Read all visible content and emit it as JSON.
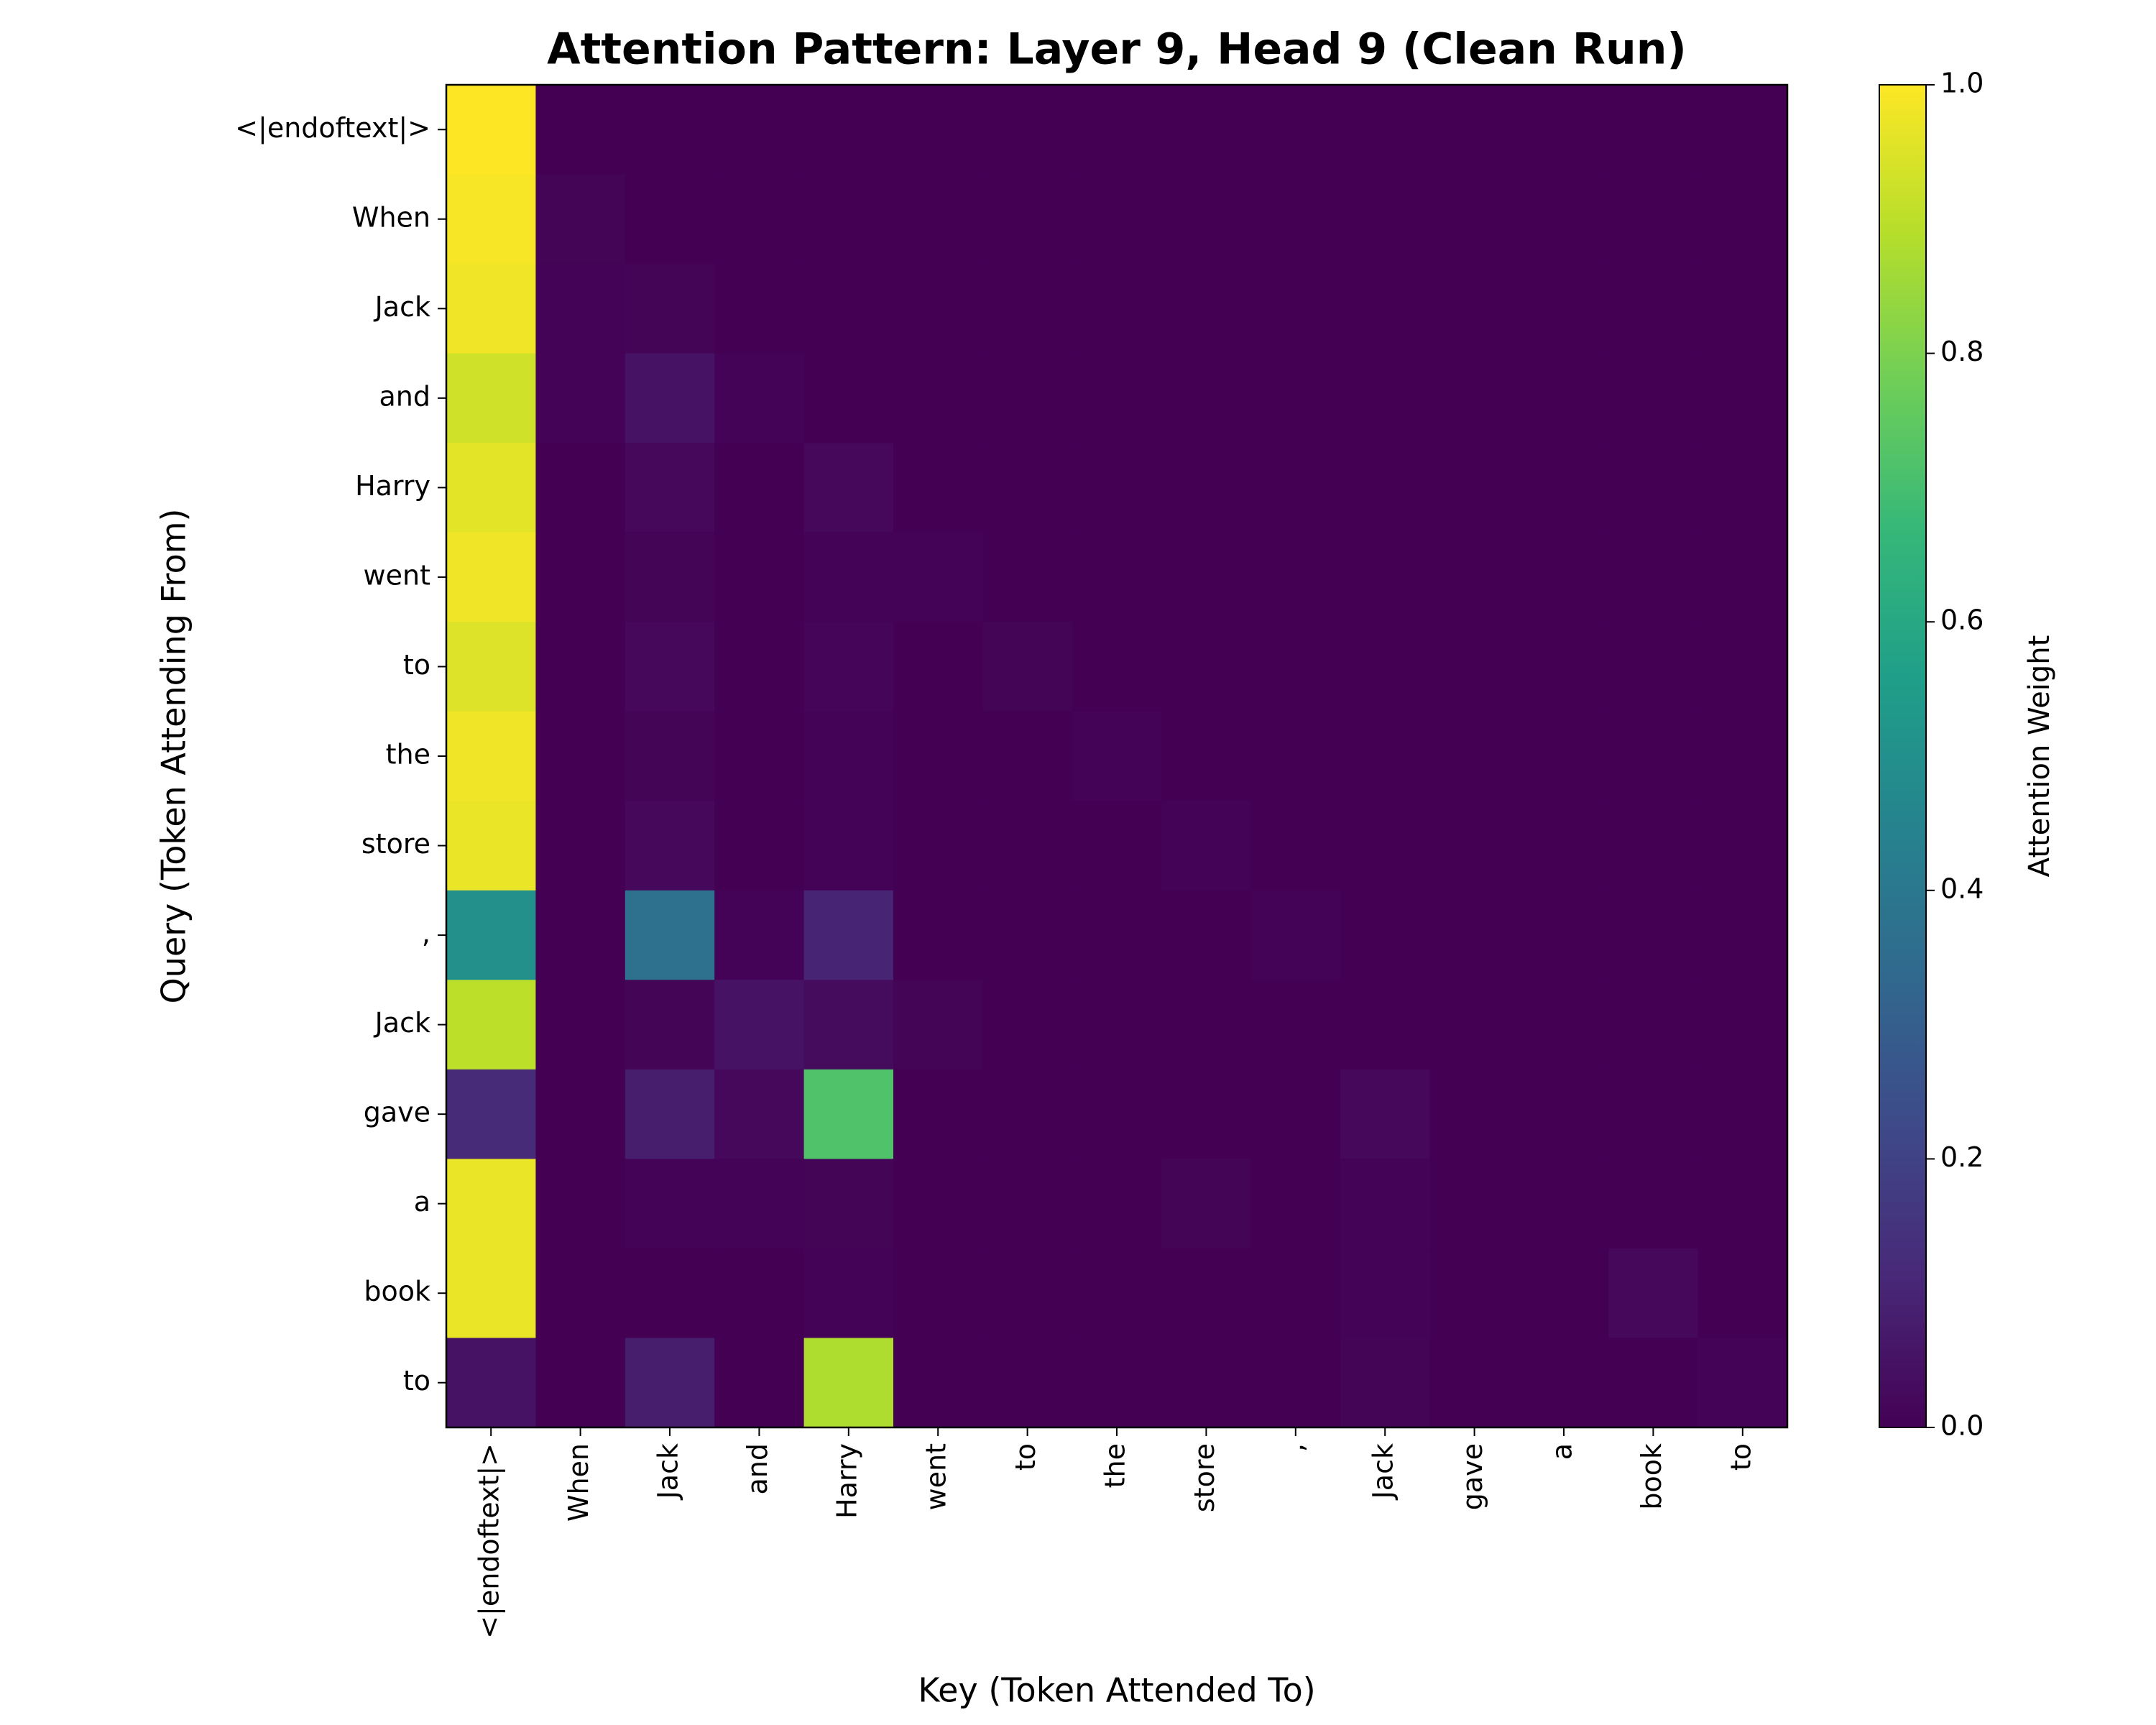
{
  "chart_data": {
    "type": "heatmap",
    "title": "Attention Pattern: Layer 9, Head 9 (Clean Run)",
    "x_label": "Key (Token Attended To)",
    "y_label": "Query (Token Attending From)",
    "x_categories": [
      "<|endoftext|>",
      "When",
      "Jack",
      "and",
      "Harry",
      "went",
      "to",
      "the",
      "store",
      ",",
      "Jack",
      "gave",
      "a",
      "book",
      "to"
    ],
    "y_categories": [
      "<|endoftext|>",
      "When",
      "Jack",
      "and",
      "Harry",
      "went",
      "to",
      "the",
      "store",
      ",",
      "Jack",
      "gave",
      "a",
      "book",
      "to"
    ],
    "values": [
      [
        1.0,
        0,
        0,
        0,
        0,
        0,
        0,
        0,
        0,
        0,
        0,
        0,
        0,
        0,
        0
      ],
      [
        0.99,
        0.01,
        0,
        0,
        0,
        0,
        0,
        0,
        0,
        0,
        0,
        0,
        0,
        0,
        0
      ],
      [
        0.98,
        0.005,
        0.01,
        0,
        0,
        0,
        0,
        0,
        0,
        0,
        0,
        0,
        0,
        0,
        0
      ],
      [
        0.93,
        0.005,
        0.05,
        0.005,
        0,
        0,
        0,
        0,
        0,
        0,
        0,
        0,
        0,
        0,
        0
      ],
      [
        0.96,
        0,
        0.02,
        0,
        0.02,
        0,
        0,
        0,
        0,
        0,
        0,
        0,
        0,
        0,
        0
      ],
      [
        0.98,
        0,
        0.01,
        0,
        0.005,
        0.005,
        0,
        0,
        0,
        0,
        0,
        0,
        0,
        0,
        0
      ],
      [
        0.95,
        0,
        0.02,
        0,
        0.015,
        0,
        0.01,
        0,
        0,
        0,
        0,
        0,
        0,
        0,
        0
      ],
      [
        0.98,
        0,
        0.01,
        0,
        0.005,
        0,
        0,
        0.005,
        0,
        0,
        0,
        0,
        0,
        0,
        0
      ],
      [
        0.97,
        0,
        0.02,
        0,
        0.005,
        0,
        0,
        0,
        0.005,
        0,
        0,
        0,
        0,
        0,
        0
      ],
      [
        0.5,
        0,
        0.37,
        0.005,
        0.1,
        0,
        0,
        0,
        0,
        0.005,
        0,
        0,
        0,
        0,
        0
      ],
      [
        0.9,
        0,
        0.01,
        0.05,
        0.03,
        0.01,
        0,
        0,
        0,
        0,
        0,
        0,
        0,
        0,
        0
      ],
      [
        0.12,
        0,
        0.08,
        0.02,
        0.72,
        0,
        0,
        0,
        0,
        0,
        0.02,
        0,
        0,
        0,
        0
      ],
      [
        0.97,
        0,
        0.005,
        0.005,
        0.01,
        0,
        0,
        0,
        0.01,
        0,
        0.005,
        0,
        0,
        0,
        0
      ],
      [
        0.97,
        0,
        0,
        0,
        0.005,
        0,
        0,
        0,
        0,
        0,
        0.005,
        0,
        0,
        0.02,
        0
      ],
      [
        0.05,
        0,
        0.08,
        0,
        0.88,
        0,
        0,
        0,
        0,
        0,
        0.01,
        0,
        0,
        0,
        0.005
      ]
    ],
    "colormap": "viridis",
    "colorbar_label": "Attention Weight",
    "clim": [
      0,
      1
    ],
    "cticks": [
      {
        "value": 0,
        "label": "0.0"
      },
      0.2,
      0.4,
      0.6,
      0.8,
      {
        "value": 1,
        "label": "1.0"
      }
    ]
  }
}
